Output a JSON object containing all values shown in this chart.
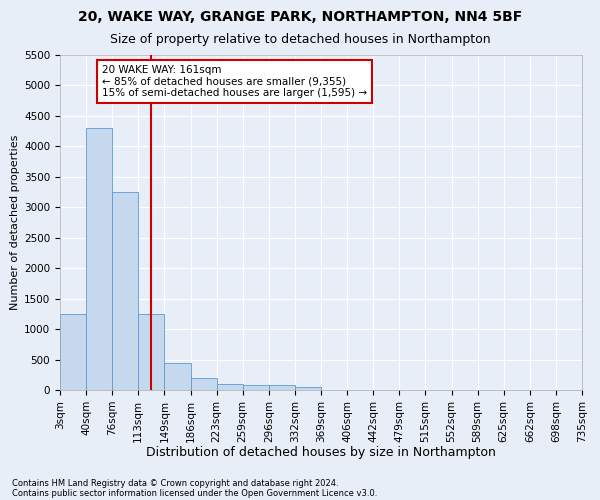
{
  "title1": "20, WAKE WAY, GRANGE PARK, NORTHAMPTON, NN4 5BF",
  "title2": "Size of property relative to detached houses in Northampton",
  "xlabel": "Distribution of detached houses by size in Northampton",
  "ylabel": "Number of detached properties",
  "footnote1": "Contains HM Land Registry data © Crown copyright and database right 2024.",
  "footnote2": "Contains public sector information licensed under the Open Government Licence v3.0.",
  "bin_labels": [
    "3sqm",
    "40sqm",
    "76sqm",
    "113sqm",
    "149sqm",
    "186sqm",
    "223sqm",
    "259sqm",
    "296sqm",
    "332sqm",
    "369sqm",
    "406sqm",
    "442sqm",
    "479sqm",
    "515sqm",
    "552sqm",
    "589sqm",
    "625sqm",
    "662sqm",
    "698sqm",
    "735sqm"
  ],
  "bar_values": [
    1250,
    4300,
    3250,
    1250,
    450,
    200,
    100,
    75,
    75,
    50,
    0,
    0,
    0,
    0,
    0,
    0,
    0,
    0,
    0,
    0
  ],
  "bar_color": "#c5d8ed",
  "bar_edge_color": "#5b9bd5",
  "annotation_line1": "20 WAKE WAY: 161sqm",
  "annotation_line2": "← 85% of detached houses are smaller (9,355)",
  "annotation_line3": "15% of semi-detached houses are larger (1,595) →",
  "ylim": [
    0,
    5500
  ],
  "yticks": [
    0,
    500,
    1000,
    1500,
    2000,
    2500,
    3000,
    3500,
    4000,
    4500,
    5000,
    5500
  ],
  "vline_color": "#cc0000",
  "vline_x": 3.5,
  "annotation_box_edgecolor": "#cc0000",
  "bg_color": "#e8eef7",
  "grid_color": "#ffffff",
  "title1_fontsize": 10,
  "title2_fontsize": 9,
  "xlabel_fontsize": 9,
  "ylabel_fontsize": 8,
  "tick_fontsize": 7.5
}
